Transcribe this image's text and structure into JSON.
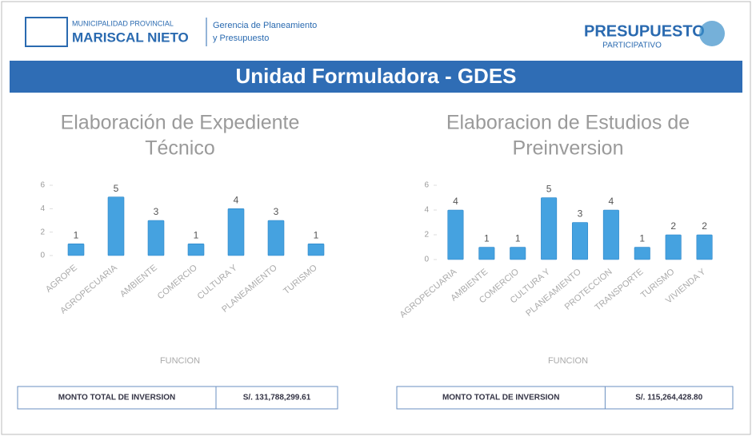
{
  "header": {
    "org_small": "MUNICIPALIDAD PROVINCIAL",
    "org_big": "MARISCAL NIETO",
    "dept_1": "Gerencia de Planeamiento",
    "dept_2": "y Presupuesto",
    "brand_big": "PRESUPUESTO",
    "brand_small": "PARTICIPATIVO",
    "banner": "Unidad Formuladora - GDES"
  },
  "chart_data": [
    {
      "type": "bar",
      "title_1": "Elaboración de Expediente",
      "title_2": "Técnico",
      "x_label": "FUNCION",
      "categories": [
        "AGROPE",
        "AGROPECUARIA",
        "AMBIENTE",
        "COMERCIO",
        "CULTURA Y",
        "PLANEAMIENTO",
        "TURISMO"
      ],
      "values": [
        1,
        5,
        3,
        1,
        4,
        3,
        1
      ],
      "color": "#45a2e0",
      "ylim": [
        0,
        6
      ],
      "yticks": [
        0,
        2,
        4,
        6
      ],
      "total_label": "MONTO TOTAL DE INVERSION",
      "total_value": "S/. 131,788,299.61"
    },
    {
      "type": "bar",
      "title_1": "Elaboracion de Estudios de",
      "title_2": "Preinversion",
      "x_label": "FUNCION",
      "categories": [
        "AGROPECUARIA",
        "AMBIENTE",
        "COMERCIO",
        "CULTURA Y",
        "PLANEAMIENTO",
        "PROTECCION",
        "TRANSPORTE",
        "TURISMO",
        "VIVIENDA Y"
      ],
      "values": [
        4,
        1,
        1,
        5,
        3,
        4,
        1,
        2,
        2
      ],
      "color": "#45a2e0",
      "ylim": [
        0,
        6
      ],
      "yticks": [
        0,
        2,
        4,
        6
      ],
      "total_label": "MONTO TOTAL DE INVERSION",
      "total_value": "S/. 115,264,428.80"
    }
  ]
}
